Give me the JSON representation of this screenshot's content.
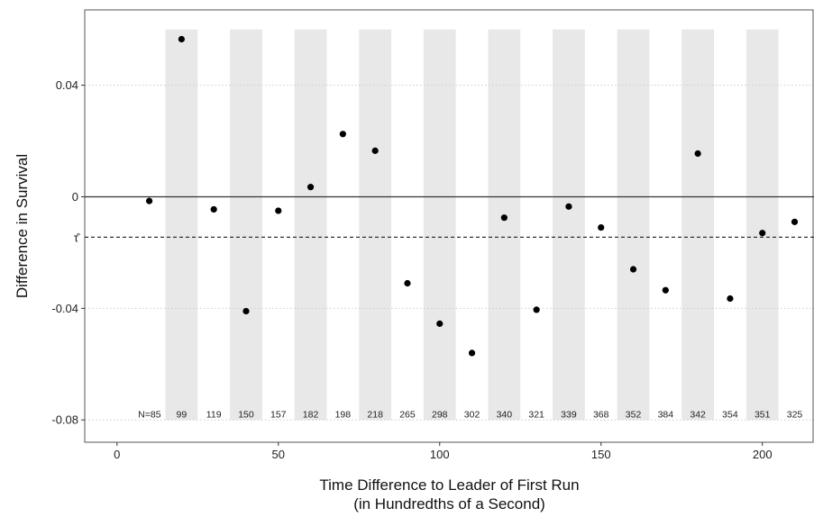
{
  "chart_data": {
    "type": "scatter",
    "title": "",
    "xlabel_line1": "Time Difference to Leader of First Run",
    "xlabel_line2": "(in Hundredths of a Second)",
    "ylabel": "Difference in Survival",
    "xlim": [
      -10,
      216
    ],
    "ylim": [
      -0.088,
      0.067
    ],
    "x_ticks": [
      0,
      50,
      100,
      150,
      200
    ],
    "x_tick_labels": [
      "0",
      "50",
      "100",
      "150",
      "200"
    ],
    "y_ticks": [
      0.04,
      0,
      -0.04,
      -0.08
    ],
    "y_tick_labels": [
      "0.04",
      "0",
      "-0.04",
      "-0.08"
    ],
    "zero_line": 0,
    "tau_hat": -0.0145,
    "tau_label": "τ̂",
    "grid": "horizontal dotted",
    "shaded_bands": [
      [
        15,
        25
      ],
      [
        35,
        45
      ],
      [
        55,
        65
      ],
      [
        75,
        85
      ],
      [
        95,
        105
      ],
      [
        115,
        125
      ],
      [
        135,
        145
      ],
      [
        155,
        165
      ],
      [
        175,
        185
      ],
      [
        195,
        205
      ]
    ],
    "points": [
      {
        "x": 10,
        "y": -0.0015
      },
      {
        "x": 20,
        "y": 0.0565
      },
      {
        "x": 30,
        "y": -0.0045
      },
      {
        "x": 40,
        "y": -0.041
      },
      {
        "x": 50,
        "y": -0.005
      },
      {
        "x": 60,
        "y": 0.0035
      },
      {
        "x": 70,
        "y": 0.0225
      },
      {
        "x": 80,
        "y": 0.0165
      },
      {
        "x": 90,
        "y": -0.031
      },
      {
        "x": 100,
        "y": -0.0455
      },
      {
        "x": 110,
        "y": -0.056
      },
      {
        "x": 120,
        "y": -0.0075
      },
      {
        "x": 130,
        "y": -0.0405
      },
      {
        "x": 140,
        "y": -0.0035
      },
      {
        "x": 150,
        "y": -0.011
      },
      {
        "x": 160,
        "y": -0.026
      },
      {
        "x": 170,
        "y": -0.0335
      },
      {
        "x": 180,
        "y": 0.0155
      },
      {
        "x": 190,
        "y": -0.0365
      },
      {
        "x": 200,
        "y": -0.013
      },
      {
        "x": 210,
        "y": -0.009
      }
    ],
    "n_labels": [
      "N=85",
      "99",
      "119",
      "150",
      "157",
      "182",
      "198",
      "218",
      "265",
      "298",
      "302",
      "340",
      "321",
      "339",
      "368",
      "352",
      "384",
      "342",
      "354",
      "351",
      "325"
    ],
    "colors": {
      "points": "#000000",
      "bands": "#e8e8e8",
      "grid": "#cccccc",
      "zero_line": "#333333",
      "tau_line": "#333333"
    }
  }
}
